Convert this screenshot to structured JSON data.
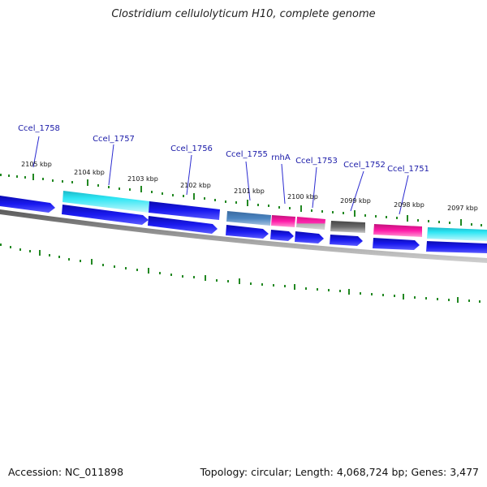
{
  "title": "Clostridium cellulolyticum H10, complete genome",
  "footer": {
    "accession": "Accession: NC_011898",
    "stats": "Topology: circular; Length: 4,068,724 bp; Genes: 3,477"
  },
  "colors": {
    "cds": "#1010e0",
    "cyan": "#22d8e8",
    "steelblue": "#4a84c0",
    "magenta": "#e8169a",
    "gray": "#6a6a6a",
    "tick": "#228822",
    "backbone": "#888888",
    "label": "#1a1aa8"
  },
  "kbp_labels": [
    "2105 kbp",
    "2104 kbp",
    "2103 kbp",
    "2102 kbp",
    "2101 kbp",
    "2100 kbp",
    "2099 kbp",
    "2098 kbp",
    "2097 kbp"
  ],
  "gene_labels": [
    "Ccel_1758",
    "Ccel_1757",
    "Ccel_1756",
    "Ccel_1755",
    "rnhA",
    "Ccel_1753",
    "Ccel_1752",
    "Ccel_1751"
  ]
}
